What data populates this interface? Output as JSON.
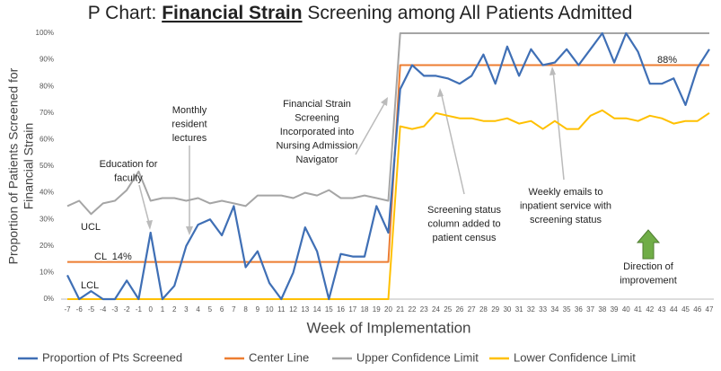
{
  "chart_data": {
    "type": "line",
    "title": [
      "P Chart: ",
      "Financial Strain",
      " Screening among All Patients Admitted"
    ],
    "x_label": "Week of Implementation",
    "y_label": [
      "Proportion of Patients Screened for",
      "Financial Strain"
    ],
    "categories": [
      "-7",
      "-6",
      "-5",
      "-4",
      "-3",
      "-2",
      "-1",
      "0",
      "1",
      "2",
      "3",
      "4",
      "5",
      "6",
      "7",
      "8",
      "9",
      "10",
      "11",
      "12",
      "13",
      "14",
      "15",
      "16",
      "17",
      "18",
      "19",
      "20",
      "21",
      "22",
      "23",
      "24",
      "25",
      "26",
      "27",
      "28",
      "29",
      "30",
      "31",
      "32",
      "33",
      "34",
      "35",
      "36",
      "37",
      "38",
      "39",
      "40",
      "41",
      "42",
      "43",
      "44",
      "45",
      "46",
      "47"
    ],
    "ylim": [
      0,
      100
    ],
    "yticks": [
      {
        "value": 0,
        "label": "0%"
      },
      {
        "value": 10,
        "label": "10%"
      },
      {
        "value": 20,
        "label": "20%"
      },
      {
        "value": 30,
        "label": "30%"
      },
      {
        "value": 40,
        "label": "40%"
      },
      {
        "value": 50,
        "label": "50%"
      },
      {
        "value": 60,
        "label": "60%"
      },
      {
        "value": 70,
        "label": "70%"
      },
      {
        "value": 80,
        "label": "80%"
      },
      {
        "value": 90,
        "label": "90%"
      },
      {
        "value": 100,
        "label": "100%"
      }
    ],
    "grid": false,
    "legend": "bottom",
    "series": [
      {
        "name": "Proportion of Pts Screened",
        "color": "#3f6fb5",
        "values": [
          9,
          0,
          3,
          0,
          0,
          7,
          0,
          25,
          0,
          5,
          20,
          28,
          30,
          24,
          35,
          12,
          18,
          6,
          0,
          10,
          27,
          18,
          0,
          17,
          16,
          16,
          35,
          25,
          79,
          88,
          84,
          84,
          83,
          81,
          84,
          92,
          81,
          95,
          84,
          94,
          88,
          89,
          94,
          88,
          94,
          100,
          89,
          100,
          93,
          81,
          81,
          83,
          73,
          87,
          94
        ]
      },
      {
        "name": "Center Line",
        "color": "#ed7d31",
        "values": [
          14,
          14,
          14,
          14,
          14,
          14,
          14,
          14,
          14,
          14,
          14,
          14,
          14,
          14,
          14,
          14,
          14,
          14,
          14,
          14,
          14,
          14,
          14,
          14,
          14,
          14,
          14,
          14,
          88,
          88,
          88,
          88,
          88,
          88,
          88,
          88,
          88,
          88,
          88,
          88,
          88,
          88,
          88,
          88,
          88,
          88,
          88,
          88,
          88,
          88,
          88,
          88,
          88,
          88,
          88
        ]
      },
      {
        "name": "Upper Confidence Limit",
        "color": "#a5a5a5",
        "values": [
          35,
          37,
          32,
          36,
          37,
          41,
          48,
          37,
          38,
          38,
          37,
          38,
          36,
          37,
          36,
          35,
          39,
          39,
          39,
          38,
          40,
          39,
          41,
          38,
          38,
          39,
          38,
          37,
          100,
          100,
          100,
          100,
          100,
          100,
          100,
          100,
          100,
          100,
          100,
          100,
          100,
          100,
          100,
          100,
          100,
          100,
          100,
          100,
          100,
          100,
          100,
          100,
          100,
          100,
          100
        ]
      },
      {
        "name": "Lower Confidence Limit",
        "color": "#ffc000",
        "values": [
          0,
          0,
          0,
          0,
          0,
          0,
          0,
          0,
          0,
          0,
          0,
          0,
          0,
          0,
          0,
          0,
          0,
          0,
          0,
          0,
          0,
          0,
          0,
          0,
          0,
          0,
          0,
          0,
          65,
          64,
          65,
          70,
          69,
          68,
          68,
          67,
          67,
          68,
          66,
          67,
          64,
          67,
          64,
          64,
          69,
          71,
          68,
          68,
          67,
          69,
          68,
          66,
          67,
          67,
          70
        ]
      }
    ],
    "annotations": [
      [
        "Education for",
        "faculty"
      ],
      [
        "Monthly",
        "resident",
        "lectures"
      ],
      [
        "Financial Strain",
        "Screening",
        "Incorporated into",
        "Nursing Admission",
        "Navigator"
      ],
      [
        "Screening status",
        "column added to",
        "patient census"
      ],
      [
        "Weekly emails to",
        "inpatient service with",
        "screening status"
      ],
      [
        "Direction of",
        "improvement"
      ],
      [
        "88%"
      ],
      [
        "CL  14%"
      ],
      [
        "UCL"
      ],
      [
        "LCL"
      ]
    ]
  }
}
